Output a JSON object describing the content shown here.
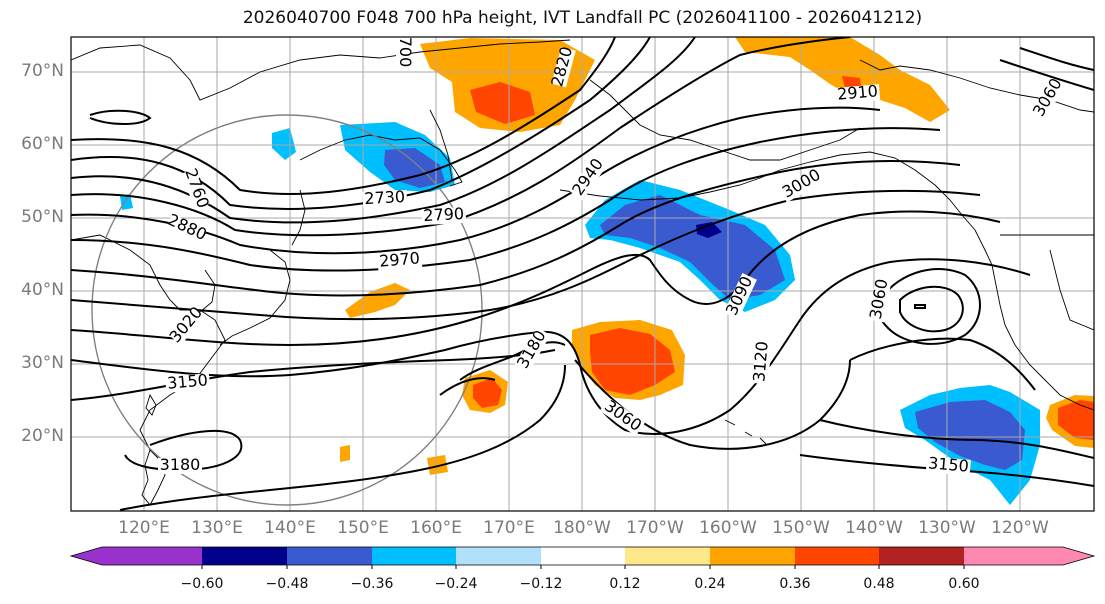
{
  "title": "2026040700 F048 700 hPa height, IVT Landfall PC (2026041100 - 2026041212)",
  "lat_labels": [
    "70°N",
    "60°N",
    "50°N",
    "40°N",
    "30°N",
    "20°N"
  ],
  "lon_labels": [
    "120°E",
    "130°E",
    "140°E",
    "150°E",
    "160°E",
    "170°E",
    "180°W",
    "170°W",
    "160°W",
    "150°W",
    "140°W",
    "130°W",
    "120°W"
  ],
  "contour_labels": [
    "700",
    "2820",
    "2910",
    "2760",
    "2880",
    "2730",
    "2790",
    "2940",
    "3000",
    "3060",
    "2970",
    "3020",
    "3150",
    "3180",
    "3180",
    "3090",
    "3060",
    "3060",
    "3120",
    "3150"
  ],
  "colorbar": {
    "ticks": [
      "−0.60",
      "−0.48",
      "−0.36",
      "−0.24",
      "−0.12",
      "0.12",
      "0.24",
      "0.36",
      "0.48",
      "0.60"
    ],
    "colors": [
      "#9932cc",
      "#00008b",
      "#3a5ad0",
      "#00bfff",
      "#b0e0fa",
      "#ffffff",
      "#ffe88a",
      "#ffa500",
      "#ff4500",
      "#b22222",
      "#ff88b0"
    ]
  }
}
